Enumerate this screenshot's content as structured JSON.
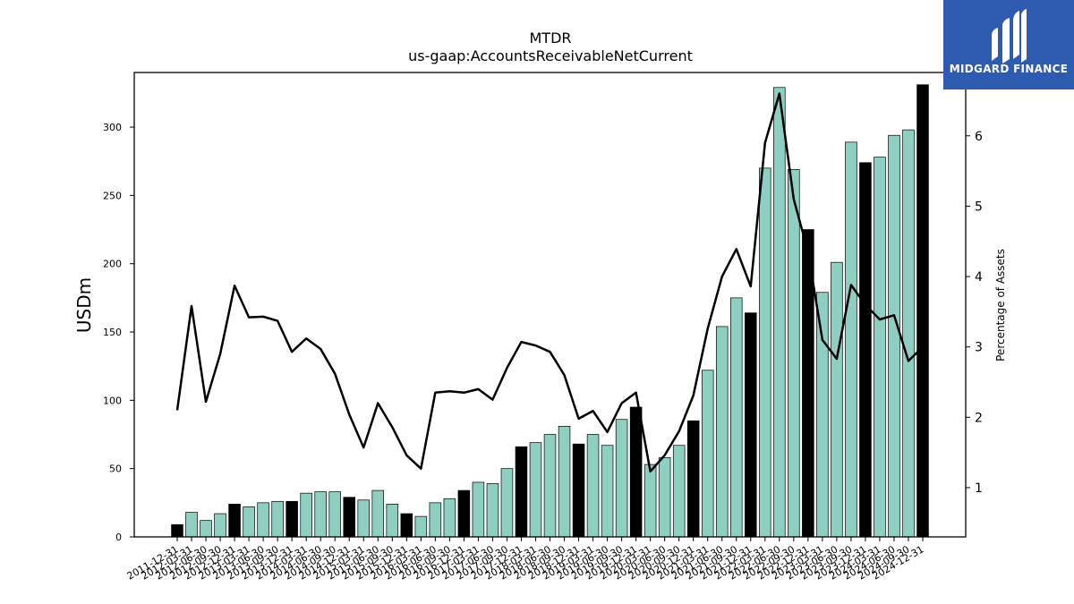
{
  "brand": {
    "name": "MIDGARD FINANCE",
    "bg_color": "#2d5bb0",
    "icon": "midgard-logo-icon"
  },
  "chart_data": {
    "type": "bar",
    "title": "MTDR",
    "subtitle": "us-gaap:AccountsReceivableNetCurrent",
    "ylabel": "USDm",
    "y2label": "Percentage of Assets",
    "ylim": [
      0,
      340
    ],
    "y2lim": [
      0.3,
      6.9
    ],
    "yticks": [
      0,
      50,
      100,
      150,
      200,
      250,
      300
    ],
    "y2ticks": [
      1,
      2,
      3,
      4,
      5,
      6
    ],
    "grid": false,
    "bar_color": "#8ecfc2",
    "highlight_color": "#000000",
    "line_color": "#000000",
    "categories": [
      "2011-12-31",
      "2012-03-31",
      "2012-06-30",
      "2012-09-30",
      "2012-12-31",
      "2013-03-31",
      "2013-06-30",
      "2013-09-30",
      "2013-12-31",
      "2014-03-31",
      "2014-06-30",
      "2014-09-30",
      "2014-12-31",
      "2015-03-31",
      "2015-06-30",
      "2015-09-30",
      "2015-12-31",
      "2016-03-31",
      "2016-06-30",
      "2016-09-30",
      "2016-12-31",
      "2017-03-31",
      "2017-06-30",
      "2017-09-30",
      "2017-12-31",
      "2018-03-31",
      "2018-06-30",
      "2018-09-30",
      "2018-12-31",
      "2019-03-31",
      "2019-06-30",
      "2019-09-30",
      "2019-12-31",
      "2020-03-31",
      "2020-06-30",
      "2020-09-30",
      "2020-12-31",
      "2021-03-31",
      "2021-06-30",
      "2021-09-30",
      "2021-12-31",
      "2022-03-31",
      "2022-06-30",
      "2022-09-30",
      "2022-12-31",
      "2023-03-31",
      "2023-06-30",
      "2023-09-30",
      "2023-12-31",
      "2024-03-31",
      "2024-06-30",
      "2024-09-30",
      "2024-12-31"
    ],
    "series": [
      {
        "type": "bar",
        "values": [
          9,
          18,
          12,
          17,
          24,
          22,
          25,
          26,
          26,
          32,
          33,
          33,
          29,
          27,
          34,
          24,
          17,
          15,
          25,
          28,
          34,
          40,
          39,
          50,
          66,
          69,
          75,
          81,
          68,
          75,
          67,
          86,
          95,
          53,
          58,
          67,
          85,
          122,
          154,
          175,
          164,
          270,
          329,
          269,
          225,
          179,
          201,
          289,
          274,
          278,
          294,
          298,
          331
        ],
        "highlighted": [
          true,
          false,
          false,
          false,
          true,
          false,
          false,
          false,
          true,
          false,
          false,
          false,
          true,
          false,
          false,
          false,
          true,
          false,
          false,
          false,
          true,
          false,
          false,
          false,
          true,
          false,
          false,
          false,
          true,
          false,
          false,
          false,
          true,
          false,
          false,
          false,
          true,
          false,
          false,
          false,
          true,
          false,
          false,
          false,
          true,
          false,
          false,
          false,
          true,
          false,
          false,
          false,
          true
        ]
      },
      {
        "type": "line",
        "axis": "right",
        "values": [
          2.1,
          3.58,
          2.22,
          2.9,
          3.87,
          3.42,
          3.43,
          3.37,
          2.93,
          3.12,
          2.97,
          2.62,
          2.04,
          1.57,
          2.2,
          1.86,
          1.46,
          1.27,
          2.35,
          2.37,
          2.35,
          2.4,
          2.25,
          2.7,
          3.07,
          3.02,
          2.93,
          2.6,
          1.98,
          2.09,
          1.79,
          2.2,
          2.35,
          1.23,
          1.46,
          1.8,
          2.31,
          3.26,
          4.0,
          4.39,
          3.86,
          5.9,
          6.6,
          5.1,
          4.35,
          3.1,
          2.83,
          3.88,
          3.6,
          3.39,
          3.45,
          2.8,
          3.0
        ]
      }
    ]
  }
}
